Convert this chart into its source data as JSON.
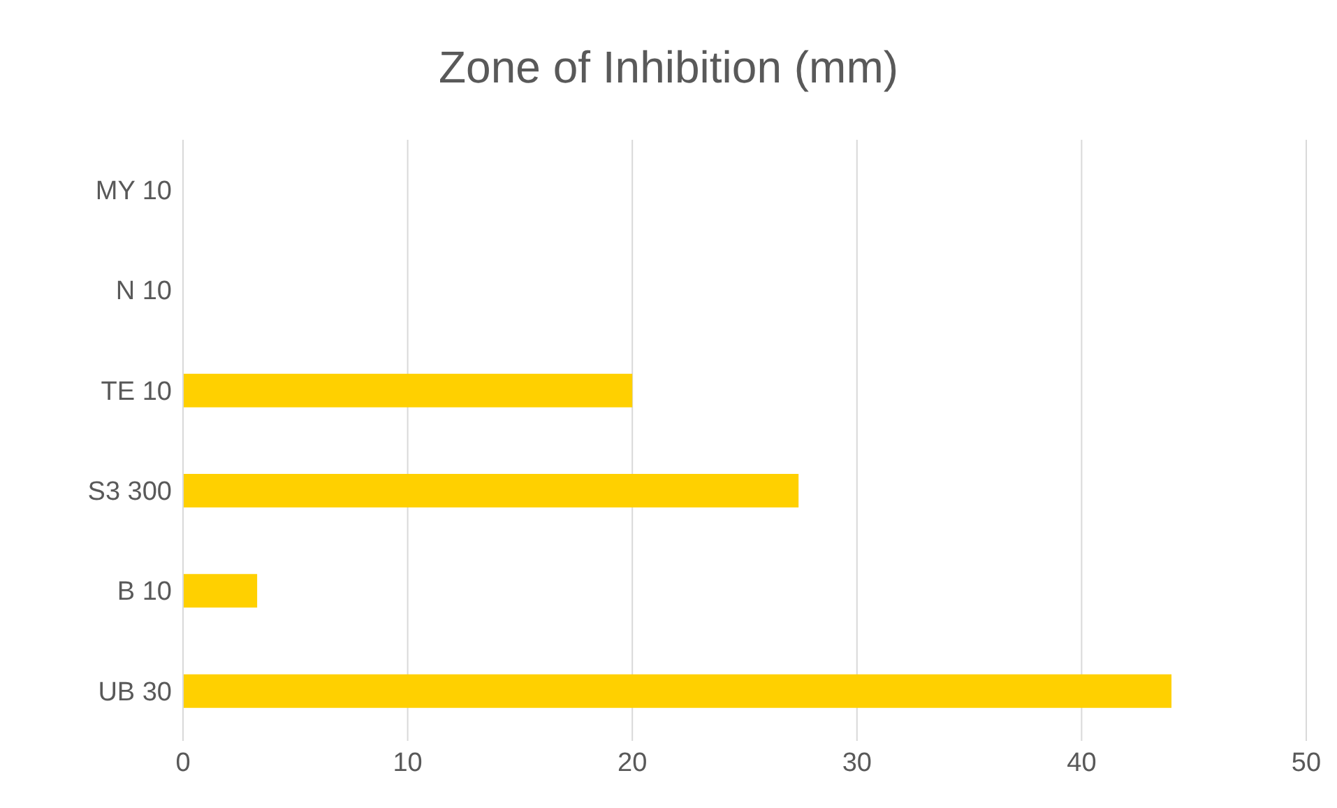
{
  "chart_data": {
    "type": "bar",
    "orientation": "horizontal",
    "title": "Zone of Inhibition (mm)",
    "categories": [
      "MY 10",
      "N 10",
      "TE 10",
      "S3 300",
      "B 10",
      "UB 30"
    ],
    "values": [
      0,
      0,
      20,
      27.4,
      3.3,
      44
    ],
    "color": "#ffd000",
    "xlim": [
      0,
      50
    ],
    "xticks": [
      0,
      10,
      20,
      30,
      40,
      50
    ],
    "grid": "x"
  }
}
